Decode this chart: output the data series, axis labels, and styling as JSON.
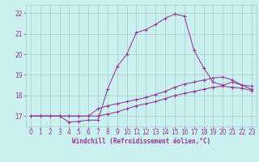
{
  "xlabel": "Windchill (Refroidissement éolien,°C)",
  "xlim": [
    -0.5,
    23.5
  ],
  "ylim": [
    16.5,
    22.4
  ],
  "yticks": [
    17,
    18,
    19,
    20,
    21,
    22
  ],
  "xticks": [
    0,
    1,
    2,
    3,
    4,
    5,
    6,
    7,
    8,
    9,
    10,
    11,
    12,
    13,
    14,
    15,
    16,
    17,
    18,
    19,
    20,
    21,
    22,
    23
  ],
  "background_color": "#caf0f0",
  "grid_color": "#aac8c8",
  "line_color": "#993399",
  "line1_x": [
    0,
    1,
    2,
    3,
    4,
    5,
    6,
    7,
    8,
    9,
    10,
    11,
    12,
    13,
    14,
    15,
    16,
    17,
    18,
    19,
    20,
    21,
    22,
    23
  ],
  "line1_y": [
    17.0,
    17.0,
    17.0,
    17.0,
    16.7,
    16.75,
    16.8,
    16.8,
    18.3,
    19.4,
    20.0,
    21.05,
    21.2,
    21.45,
    21.75,
    21.95,
    21.85,
    20.2,
    19.35,
    18.65,
    18.5,
    18.65,
    18.5,
    18.45
  ],
  "line2_x": [
    0,
    1,
    2,
    3,
    4,
    5,
    6,
    7,
    8,
    9,
    10,
    11,
    12,
    13,
    14,
    15,
    16,
    17,
    18,
    19,
    20,
    21,
    22,
    23
  ],
  "line2_y": [
    17.0,
    17.0,
    17.0,
    17.0,
    17.0,
    17.0,
    17.0,
    17.35,
    17.5,
    17.6,
    17.7,
    17.8,
    17.9,
    18.05,
    18.2,
    18.4,
    18.55,
    18.65,
    18.75,
    18.85,
    18.9,
    18.75,
    18.5,
    18.3
  ],
  "line3_x": [
    0,
    1,
    2,
    3,
    4,
    5,
    6,
    7,
    8,
    9,
    10,
    11,
    12,
    13,
    14,
    15,
    16,
    17,
    18,
    19,
    20,
    21,
    22,
    23
  ],
  "line3_y": [
    17.0,
    17.0,
    17.0,
    17.0,
    17.0,
    17.0,
    17.0,
    17.0,
    17.1,
    17.2,
    17.35,
    17.5,
    17.6,
    17.7,
    17.85,
    18.0,
    18.1,
    18.2,
    18.3,
    18.4,
    18.45,
    18.4,
    18.35,
    18.25
  ],
  "tick_fontsize": 5.5,
  "xlabel_fontsize": 5.5
}
